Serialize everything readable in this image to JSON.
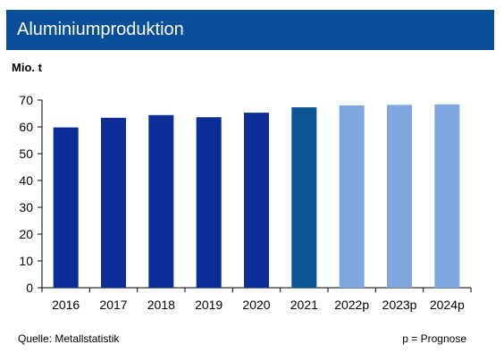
{
  "header": {
    "title": "Aluminiumproduktion"
  },
  "chart_data": {
    "type": "bar",
    "ylabel": "Mio. t",
    "categories": [
      "2016",
      "2017",
      "2018",
      "2019",
      "2020",
      "2021",
      "2022p",
      "2023p",
      "2024p"
    ],
    "values": [
      59.8,
      63.4,
      64.4,
      63.6,
      65.3,
      67.3,
      68.0,
      68.2,
      68.4
    ],
    "ylim": [
      0,
      70
    ],
    "yticks": [
      0,
      10,
      20,
      30,
      40,
      50,
      60,
      70
    ],
    "grid": false,
    "colors": {
      "historic": "#0a2d97",
      "current": "#0a5595",
      "forecast": "#7ea6df",
      "header": "#0a4f9a"
    },
    "bar_kind": [
      "historic",
      "historic",
      "historic",
      "historic",
      "historic",
      "current",
      "forecast",
      "forecast",
      "forecast"
    ]
  },
  "footer": {
    "source": "Quelle: Metallstatistik",
    "note": "p = Prognose"
  }
}
